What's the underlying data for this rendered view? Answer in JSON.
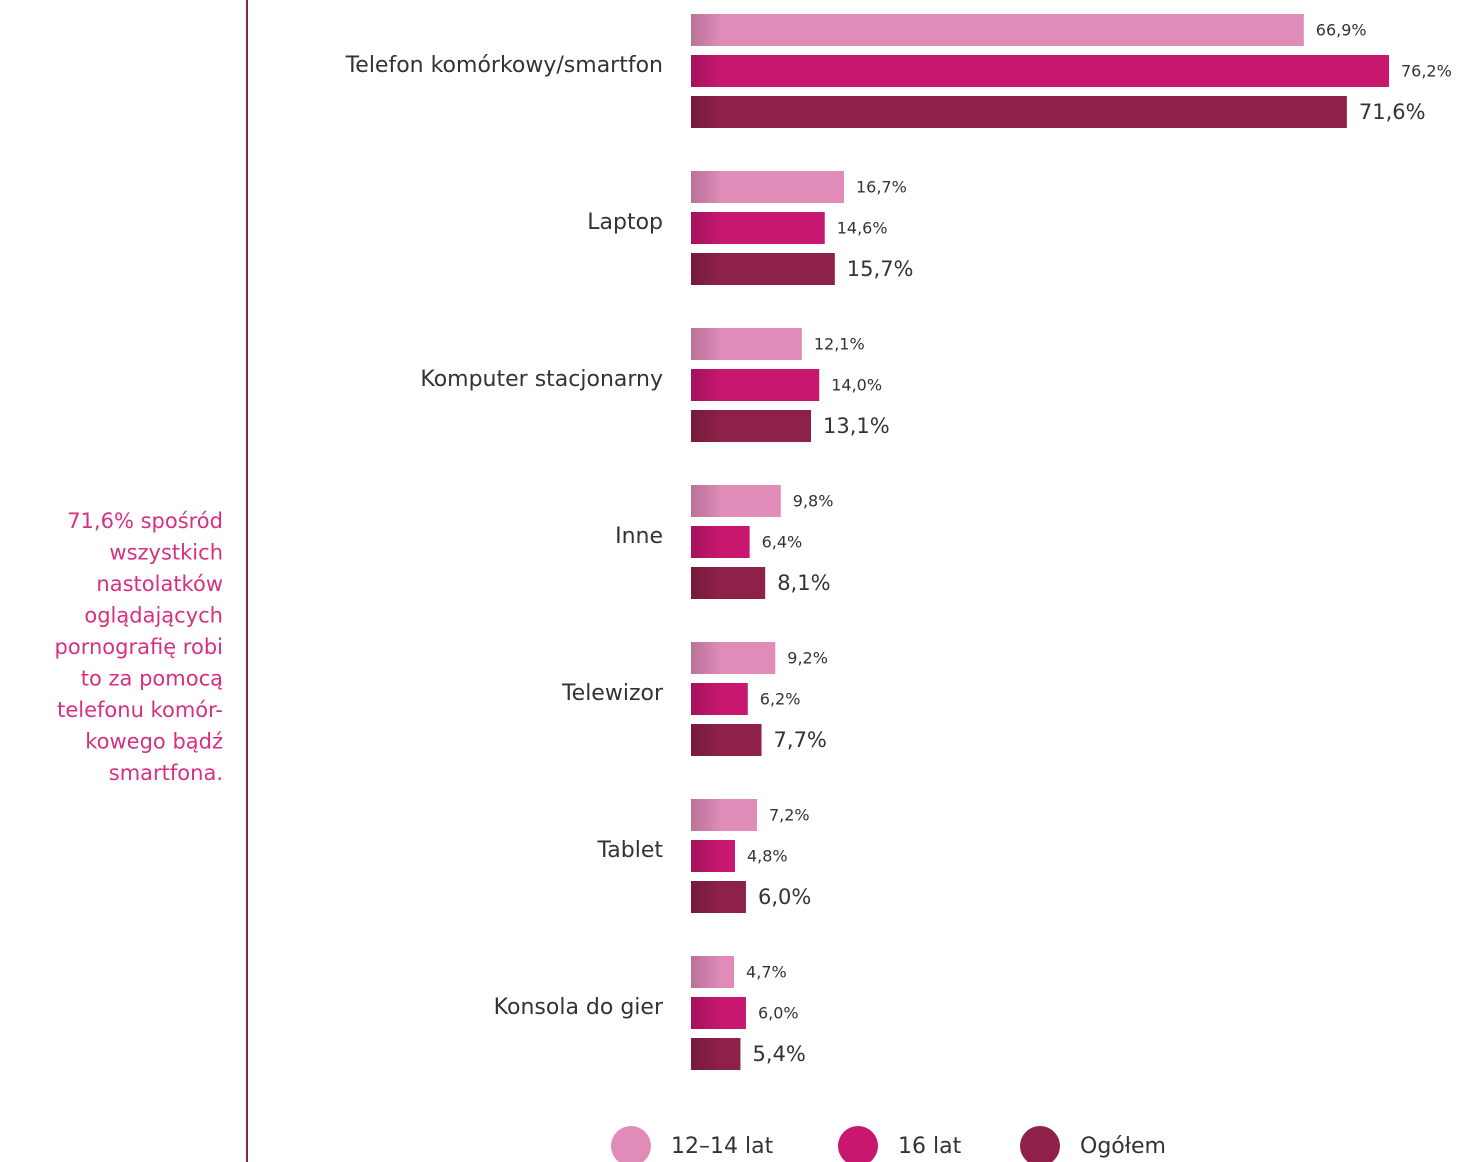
{
  "chart_data": {
    "type": "bar",
    "orientation": "horizontal",
    "annotation": [
      "71,6% spośród",
      "wszystkich",
      "nastolatków",
      "oglądających",
      "pornografię robi",
      "to za pomocą",
      "telefonu komór-",
      "kowego bądź",
      "smartfona."
    ],
    "categories": [
      "Telefon komórkowy/smartfon",
      "Laptop",
      "Komputer stacjonarny",
      "Inne",
      "Telewizor",
      "Tablet",
      "Konsola do gier"
    ],
    "series": [
      {
        "name": "12–14 lat",
        "color": "#e08bb8",
        "values": [
          66.9,
          16.7,
          12.1,
          9.8,
          9.2,
          7.2,
          4.7
        ],
        "value_labels": [
          "66,9%",
          "16,7%",
          "12,1%",
          "9,8%",
          "9,2%",
          "7,2%",
          "4,7%"
        ]
      },
      {
        "name": "16 lat",
        "color": "#c8176f",
        "values": [
          76.2,
          14.6,
          14.0,
          6.4,
          6.2,
          4.8,
          6.0
        ],
        "value_labels": [
          "76,2%",
          "14,6%",
          "14,0%",
          "6,4%",
          "6,2%",
          "4,8%",
          "6,0%"
        ]
      },
      {
        "name": "Ogółem",
        "color": "#8e2149",
        "values": [
          71.6,
          15.7,
          13.1,
          8.1,
          7.7,
          6.0,
          5.4
        ],
        "value_labels": [
          "71,6%",
          "15,7%",
          "13,1%",
          "8,1%",
          "7,7%",
          "6,0%",
          "5,4%"
        ]
      }
    ]
  }
}
